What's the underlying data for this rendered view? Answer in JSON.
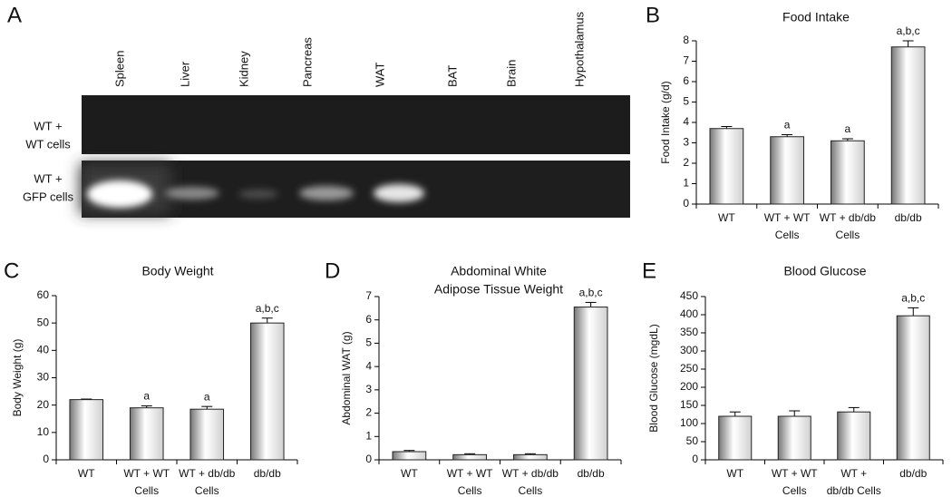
{
  "gel": {
    "panel_label": "A",
    "lanes": [
      "Spleen",
      "Liver",
      "Kidney",
      "Pancreas",
      "WAT",
      "BAT",
      "Brain",
      "Hypothalamus"
    ],
    "rows": [
      [
        "WT +",
        "WT cells"
      ],
      [
        "WT +",
        "GFP cells"
      ]
    ]
  },
  "chart_data": [
    {
      "type": "bar",
      "panel_label": "B",
      "title": "Food Intake",
      "ylabel": "Food Intake (g/d)",
      "categories": [
        [
          "WT"
        ],
        [
          "WT + WT",
          "Cells"
        ],
        [
          "WT + db/db",
          "Cells"
        ],
        [
          "db/db"
        ]
      ],
      "values": [
        3.7,
        3.3,
        3.1,
        7.7
      ],
      "errors": [
        0.1,
        0.1,
        0.1,
        0.3
      ],
      "annotations": [
        null,
        "a",
        "a",
        "a,b,c"
      ],
      "ylim": [
        0,
        8
      ],
      "yticks": [
        0,
        1,
        2,
        3,
        4,
        5,
        6,
        7,
        8
      ],
      "color": "#d0d0d0"
    },
    {
      "type": "bar",
      "panel_label": "C",
      "title": "Body Weight",
      "ylabel": "Body Weight (g)",
      "categories": [
        [
          "WT"
        ],
        [
          "WT + WT",
          "Cells"
        ],
        [
          "WT + db/db",
          "Cells"
        ],
        [
          "db/db"
        ]
      ],
      "values": [
        22,
        19,
        18.5,
        50
      ],
      "errors": [
        0.2,
        0.7,
        1,
        1.8
      ],
      "annotations": [
        null,
        "a",
        "a",
        "a,b,c"
      ],
      "ylim": [
        0,
        60
      ],
      "yticks": [
        0,
        10,
        20,
        30,
        40,
        50,
        60
      ],
      "color": "#d0d0d0"
    },
    {
      "type": "bar",
      "panel_label": "D",
      "title": [
        "Abdominal White",
        "Adipose Tissue Weight"
      ],
      "ylabel": "Abdominal WAT (g)",
      "categories": [
        [
          "WT"
        ],
        [
          "WT + WT",
          "Cells"
        ],
        [
          "WT + db/db",
          "Cells"
        ],
        [
          "db/db"
        ]
      ],
      "values": [
        0.35,
        0.22,
        0.22,
        6.55
      ],
      "errors": [
        0.05,
        0.04,
        0.04,
        0.2
      ],
      "annotations": [
        null,
        null,
        null,
        "a,b,c"
      ],
      "ylim": [
        0,
        7
      ],
      "yticks": [
        0,
        1,
        2,
        3,
        4,
        5,
        6,
        7
      ],
      "color": "#d0d0d0"
    },
    {
      "type": "bar",
      "panel_label": "E",
      "title": "Blood Glucose",
      "ylabel": "Blood Glucose (mgdL)",
      "categories": [
        [
          "WT"
        ],
        [
          "WT + WT",
          "Cells"
        ],
        [
          "WT +",
          "db/db Cells"
        ],
        [
          "db/db"
        ]
      ],
      "values": [
        120,
        120,
        132,
        397
      ],
      "errors": [
        12,
        15,
        12,
        22
      ],
      "annotations": [
        null,
        null,
        null,
        "a,b,c"
      ],
      "ylim": [
        0,
        450
      ],
      "yticks": [
        0,
        50,
        100,
        150,
        200,
        250,
        300,
        350,
        400,
        450
      ],
      "color": "#d0d0d0"
    }
  ]
}
